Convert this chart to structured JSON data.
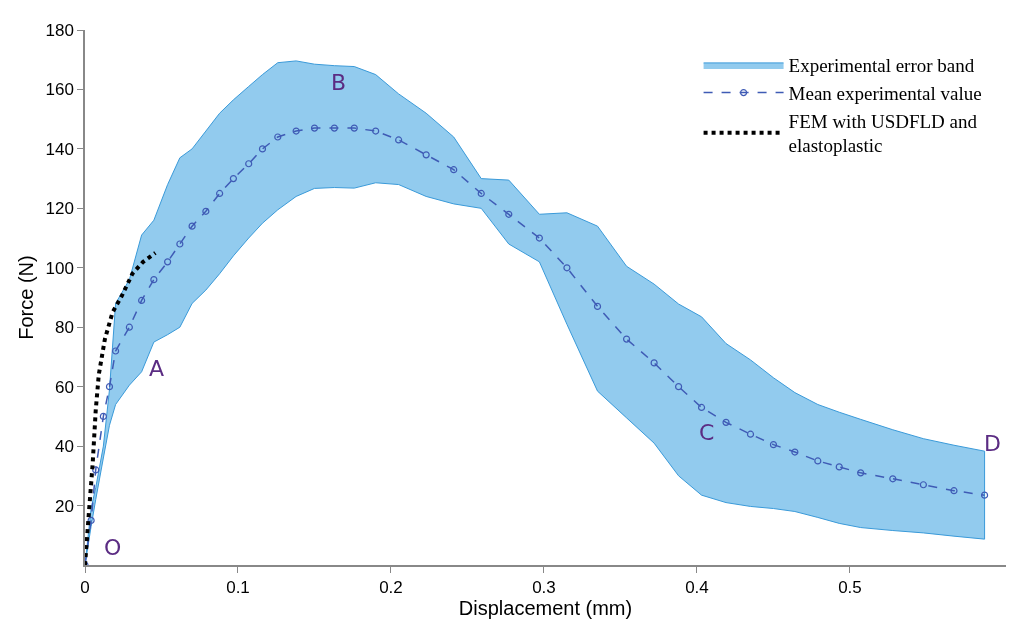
{
  "chart_data": {
    "type": "line",
    "xlabel": "Displacement (mm)",
    "ylabel": "Force (N)",
    "xlim": [
      0,
      0.602
    ],
    "xticks": [
      0,
      0.1,
      0.2,
      0.3,
      0.4,
      0.5
    ],
    "ylim": [
      0,
      180
    ],
    "yticks": [
      20,
      40,
      60,
      80,
      100,
      120,
      140,
      160,
      180
    ],
    "legend": "top right",
    "series": [
      {
        "name": "Experimental error band",
        "type": "area",
        "color": "#92cbee"
      },
      {
        "name": "Mean experimental value",
        "color": "#3f5bb5",
        "marker": "circle",
        "line_style": "dashed",
        "x": [
          0,
          0.004,
          0.007,
          0.012,
          0.016,
          0.02,
          0.029,
          0.037,
          0.045,
          0.054,
          0.062,
          0.07,
          0.079,
          0.088,
          0.097,
          0.107,
          0.116,
          0.126,
          0.138,
          0.15,
          0.163,
          0.176,
          0.19,
          0.205,
          0.223,
          0.241,
          0.259,
          0.277,
          0.297,
          0.315,
          0.335,
          0.354,
          0.372,
          0.388,
          0.403,
          0.419,
          0.435,
          0.45,
          0.464,
          0.479,
          0.493,
          0.507,
          0.528,
          0.548,
          0.568,
          0.588
        ],
        "values": [
          0,
          15,
          32,
          50,
          60,
          72,
          80,
          89,
          96,
          102,
          108,
          114,
          119,
          125,
          130,
          135,
          140,
          144,
          146,
          147,
          147,
          147,
          146,
          143,
          138,
          133,
          125,
          118,
          110,
          100,
          87,
          76,
          68,
          60,
          53,
          48,
          44,
          40.5,
          38,
          35,
          33,
          31,
          29,
          27,
          25,
          23.5
        ],
        "upper": [
          0,
          19,
          26,
          40,
          59,
          88,
          96,
          111,
          116,
          128,
          137,
          140,
          146,
          152,
          156.5,
          161,
          165,
          169,
          169.6,
          168.5,
          168,
          167.7,
          165,
          158.5,
          152,
          144,
          130,
          129.5,
          118,
          118.5,
          114,
          100.5,
          94.5,
          87.8,
          83.5,
          74.5,
          69,
          63,
          58,
          54,
          51.4,
          49,
          45.5,
          42.5,
          40.3,
          38.3
        ],
        "lower": [
          0,
          13,
          22,
          36,
          47,
          54,
          60.5,
          65,
          75,
          77.5,
          80,
          88,
          92.5,
          98,
          104,
          110,
          115,
          119.5,
          124,
          126.7,
          127,
          126.8,
          128.6,
          128,
          124,
          121.5,
          120,
          108,
          102,
          81,
          58.5,
          49.5,
          41,
          30,
          23.5,
          21,
          19.7,
          19,
          18,
          16,
          14,
          12.6,
          11.6,
          10.8,
          9.7,
          8.7
        ]
      },
      {
        "name": "FEM with USDFLD and elastoplastic",
        "color": "#000000",
        "marker": "none",
        "line_style": "dotted",
        "x": [
          0,
          0.0026,
          0.005,
          0.007,
          0.009,
          0.013,
          0.018,
          0.024,
          0.031,
          0.038,
          0.046
        ],
        "values": [
          0,
          18,
          34,
          52,
          64,
          76,
          85,
          90.5,
          98,
          102,
          105
        ]
      }
    ],
    "annotations": [
      "O",
      "A",
      "B",
      "C",
      "D"
    ]
  }
}
